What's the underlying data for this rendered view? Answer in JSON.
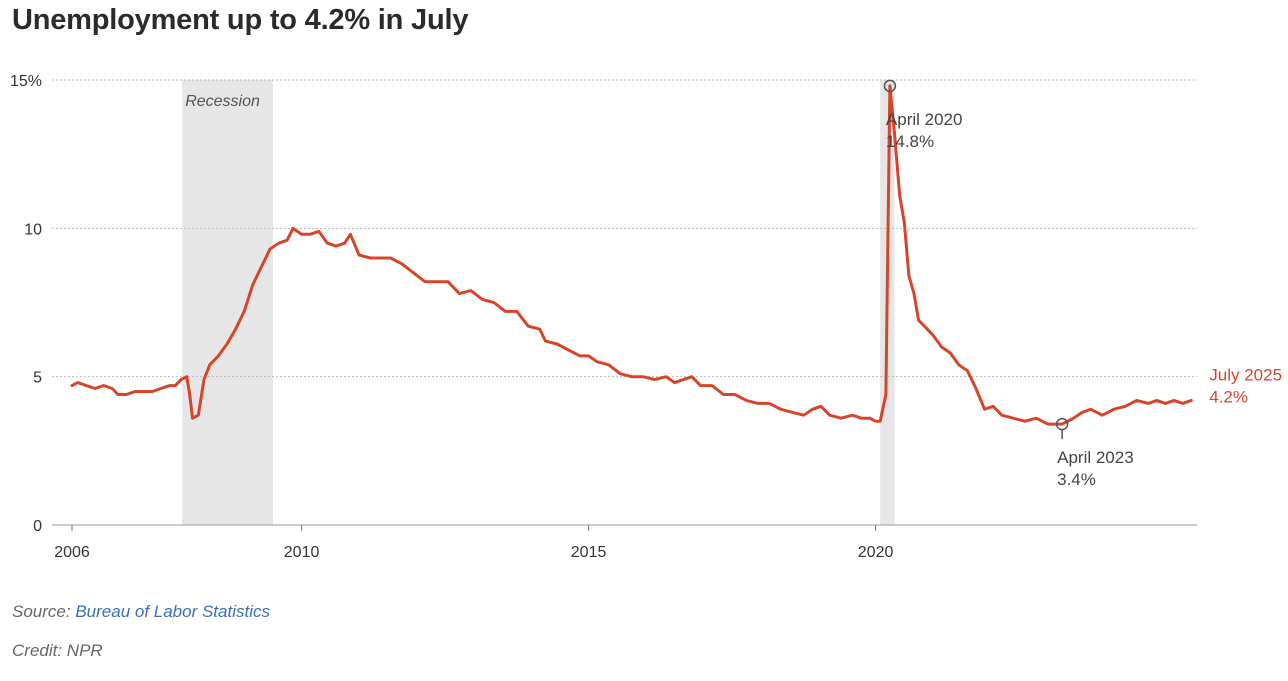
{
  "title": "Unemployment up to 4.2% in July",
  "footer": {
    "source_label": "Source:",
    "source_name": "Bureau of Labor Statistics",
    "credit": "Credit: NPR"
  },
  "colors": {
    "line": "#d6452a",
    "recession": "#e6e6e6",
    "grid": "#bbbbbb",
    "annotation": "#555555",
    "source_link": "#3b6fb6"
  },
  "chart_data": {
    "type": "line",
    "title": "Unemployment up to 4.2% in July",
    "xlabel": "",
    "ylabel": "",
    "ylim": [
      0,
      15
    ],
    "xlim": [
      2006.0,
      2025.6
    ],
    "grid": true,
    "y_ticks": [
      {
        "value": 0,
        "label": "0"
      },
      {
        "value": 5,
        "label": "5"
      },
      {
        "value": 10,
        "label": "10"
      },
      {
        "value": 15,
        "label": "15%"
      }
    ],
    "x_ticks": [
      {
        "value": 2006.0,
        "label": "2006"
      },
      {
        "value": 2010.0,
        "label": "2010"
      },
      {
        "value": 2015.0,
        "label": "2015"
      },
      {
        "value": 2020.0,
        "label": "2020"
      }
    ],
    "recessions": [
      {
        "label": "Recession",
        "start": 2007.92,
        "end": 2009.5
      },
      {
        "label": "",
        "start": 2020.08,
        "end": 2020.33
      }
    ],
    "series": [
      {
        "name": "",
        "points": [
          [
            2006.0,
            4.7
          ],
          [
            2006.1,
            4.8
          ],
          [
            2006.25,
            4.7
          ],
          [
            2006.4,
            4.6
          ],
          [
            2006.55,
            4.7
          ],
          [
            2006.7,
            4.6
          ],
          [
            2006.8,
            4.4
          ],
          [
            2006.95,
            4.4
          ],
          [
            2007.1,
            4.5
          ],
          [
            2007.25,
            4.5
          ],
          [
            2007.4,
            4.5
          ],
          [
            2007.55,
            4.6
          ],
          [
            2007.7,
            4.7
          ],
          [
            2007.8,
            4.7
          ],
          [
            2007.9,
            4.9
          ],
          [
            2008.0,
            5.0
          ],
          [
            2008.05,
            4.4
          ],
          [
            2008.1,
            3.6
          ],
          [
            2008.2,
            3.7
          ],
          [
            2008.3,
            4.9
          ],
          [
            2008.4,
            5.4
          ],
          [
            2008.55,
            5.7
          ],
          [
            2008.7,
            6.1
          ],
          [
            2008.85,
            6.6
          ],
          [
            2009.0,
            7.2
          ],
          [
            2009.15,
            8.1
          ],
          [
            2009.3,
            8.7
          ],
          [
            2009.45,
            9.3
          ],
          [
            2009.6,
            9.5
          ],
          [
            2009.75,
            9.6
          ],
          [
            2009.85,
            10.0
          ],
          [
            2010.0,
            9.8
          ],
          [
            2010.15,
            9.8
          ],
          [
            2010.3,
            9.9
          ],
          [
            2010.45,
            9.5
          ],
          [
            2010.6,
            9.4
          ],
          [
            2010.75,
            9.5
          ],
          [
            2010.85,
            9.8
          ],
          [
            2011.0,
            9.1
          ],
          [
            2011.2,
            9.0
          ],
          [
            2011.35,
            9.0
          ],
          [
            2011.55,
            9.0
          ],
          [
            2011.75,
            8.8
          ],
          [
            2011.95,
            8.5
          ],
          [
            2012.15,
            8.2
          ],
          [
            2012.35,
            8.2
          ],
          [
            2012.55,
            8.2
          ],
          [
            2012.75,
            7.8
          ],
          [
            2012.95,
            7.9
          ],
          [
            2013.15,
            7.6
          ],
          [
            2013.35,
            7.5
          ],
          [
            2013.55,
            7.2
          ],
          [
            2013.75,
            7.2
          ],
          [
            2013.95,
            6.7
          ],
          [
            2014.15,
            6.6
          ],
          [
            2014.25,
            6.2
          ],
          [
            2014.45,
            6.1
          ],
          [
            2014.65,
            5.9
          ],
          [
            2014.85,
            5.7
          ],
          [
            2015.0,
            5.7
          ],
          [
            2015.15,
            5.5
          ],
          [
            2015.35,
            5.4
          ],
          [
            2015.55,
            5.1
          ],
          [
            2015.75,
            5.0
          ],
          [
            2015.95,
            5.0
          ],
          [
            2016.15,
            4.9
          ],
          [
            2016.35,
            5.0
          ],
          [
            2016.5,
            4.8
          ],
          [
            2016.65,
            4.9
          ],
          [
            2016.8,
            5.0
          ],
          [
            2016.95,
            4.7
          ],
          [
            2017.15,
            4.7
          ],
          [
            2017.35,
            4.4
          ],
          [
            2017.55,
            4.4
          ],
          [
            2017.75,
            4.2
          ],
          [
            2017.95,
            4.1
          ],
          [
            2018.15,
            4.1
          ],
          [
            2018.35,
            3.9
          ],
          [
            2018.55,
            3.8
          ],
          [
            2018.75,
            3.7
          ],
          [
            2018.9,
            3.9
          ],
          [
            2019.05,
            4.0
          ],
          [
            2019.2,
            3.7
          ],
          [
            2019.4,
            3.6
          ],
          [
            2019.6,
            3.7
          ],
          [
            2019.75,
            3.6
          ],
          [
            2019.9,
            3.6
          ],
          [
            2020.0,
            3.5
          ],
          [
            2020.08,
            3.5
          ],
          [
            2020.18,
            4.4
          ],
          [
            2020.25,
            14.8
          ],
          [
            2020.33,
            13.2
          ],
          [
            2020.42,
            11.1
          ],
          [
            2020.5,
            10.2
          ],
          [
            2020.58,
            8.4
          ],
          [
            2020.67,
            7.8
          ],
          [
            2020.75,
            6.9
          ],
          [
            2020.85,
            6.7
          ],
          [
            2021.0,
            6.4
          ],
          [
            2021.15,
            6.0
          ],
          [
            2021.3,
            5.8
          ],
          [
            2021.45,
            5.4
          ],
          [
            2021.6,
            5.2
          ],
          [
            2021.75,
            4.6
          ],
          [
            2021.9,
            3.9
          ],
          [
            2022.05,
            4.0
          ],
          [
            2022.2,
            3.7
          ],
          [
            2022.4,
            3.6
          ],
          [
            2022.6,
            3.5
          ],
          [
            2022.8,
            3.6
          ],
          [
            2023.0,
            3.4
          ],
          [
            2023.25,
            3.4
          ],
          [
            2023.45,
            3.6
          ],
          [
            2023.6,
            3.8
          ],
          [
            2023.75,
            3.9
          ],
          [
            2023.95,
            3.7
          ],
          [
            2024.15,
            3.9
          ],
          [
            2024.35,
            4.0
          ],
          [
            2024.55,
            4.2
          ],
          [
            2024.75,
            4.1
          ],
          [
            2024.9,
            4.2
          ],
          [
            2025.05,
            4.1
          ],
          [
            2025.2,
            4.2
          ],
          [
            2025.35,
            4.1
          ],
          [
            2025.5,
            4.2
          ]
        ]
      }
    ],
    "annotations": [
      {
        "line1": "April 2020",
        "line2": "14.8%",
        "x": 2020.25,
        "y": 14.8,
        "style": "marker"
      },
      {
        "line1": "April 2023",
        "line2": "3.4%",
        "x": 2023.25,
        "y": 3.4,
        "style": "marker"
      },
      {
        "line1": "July 2025",
        "line2": "4.2%",
        "x": 2025.5,
        "y": 4.2,
        "style": "end-label"
      }
    ]
  }
}
